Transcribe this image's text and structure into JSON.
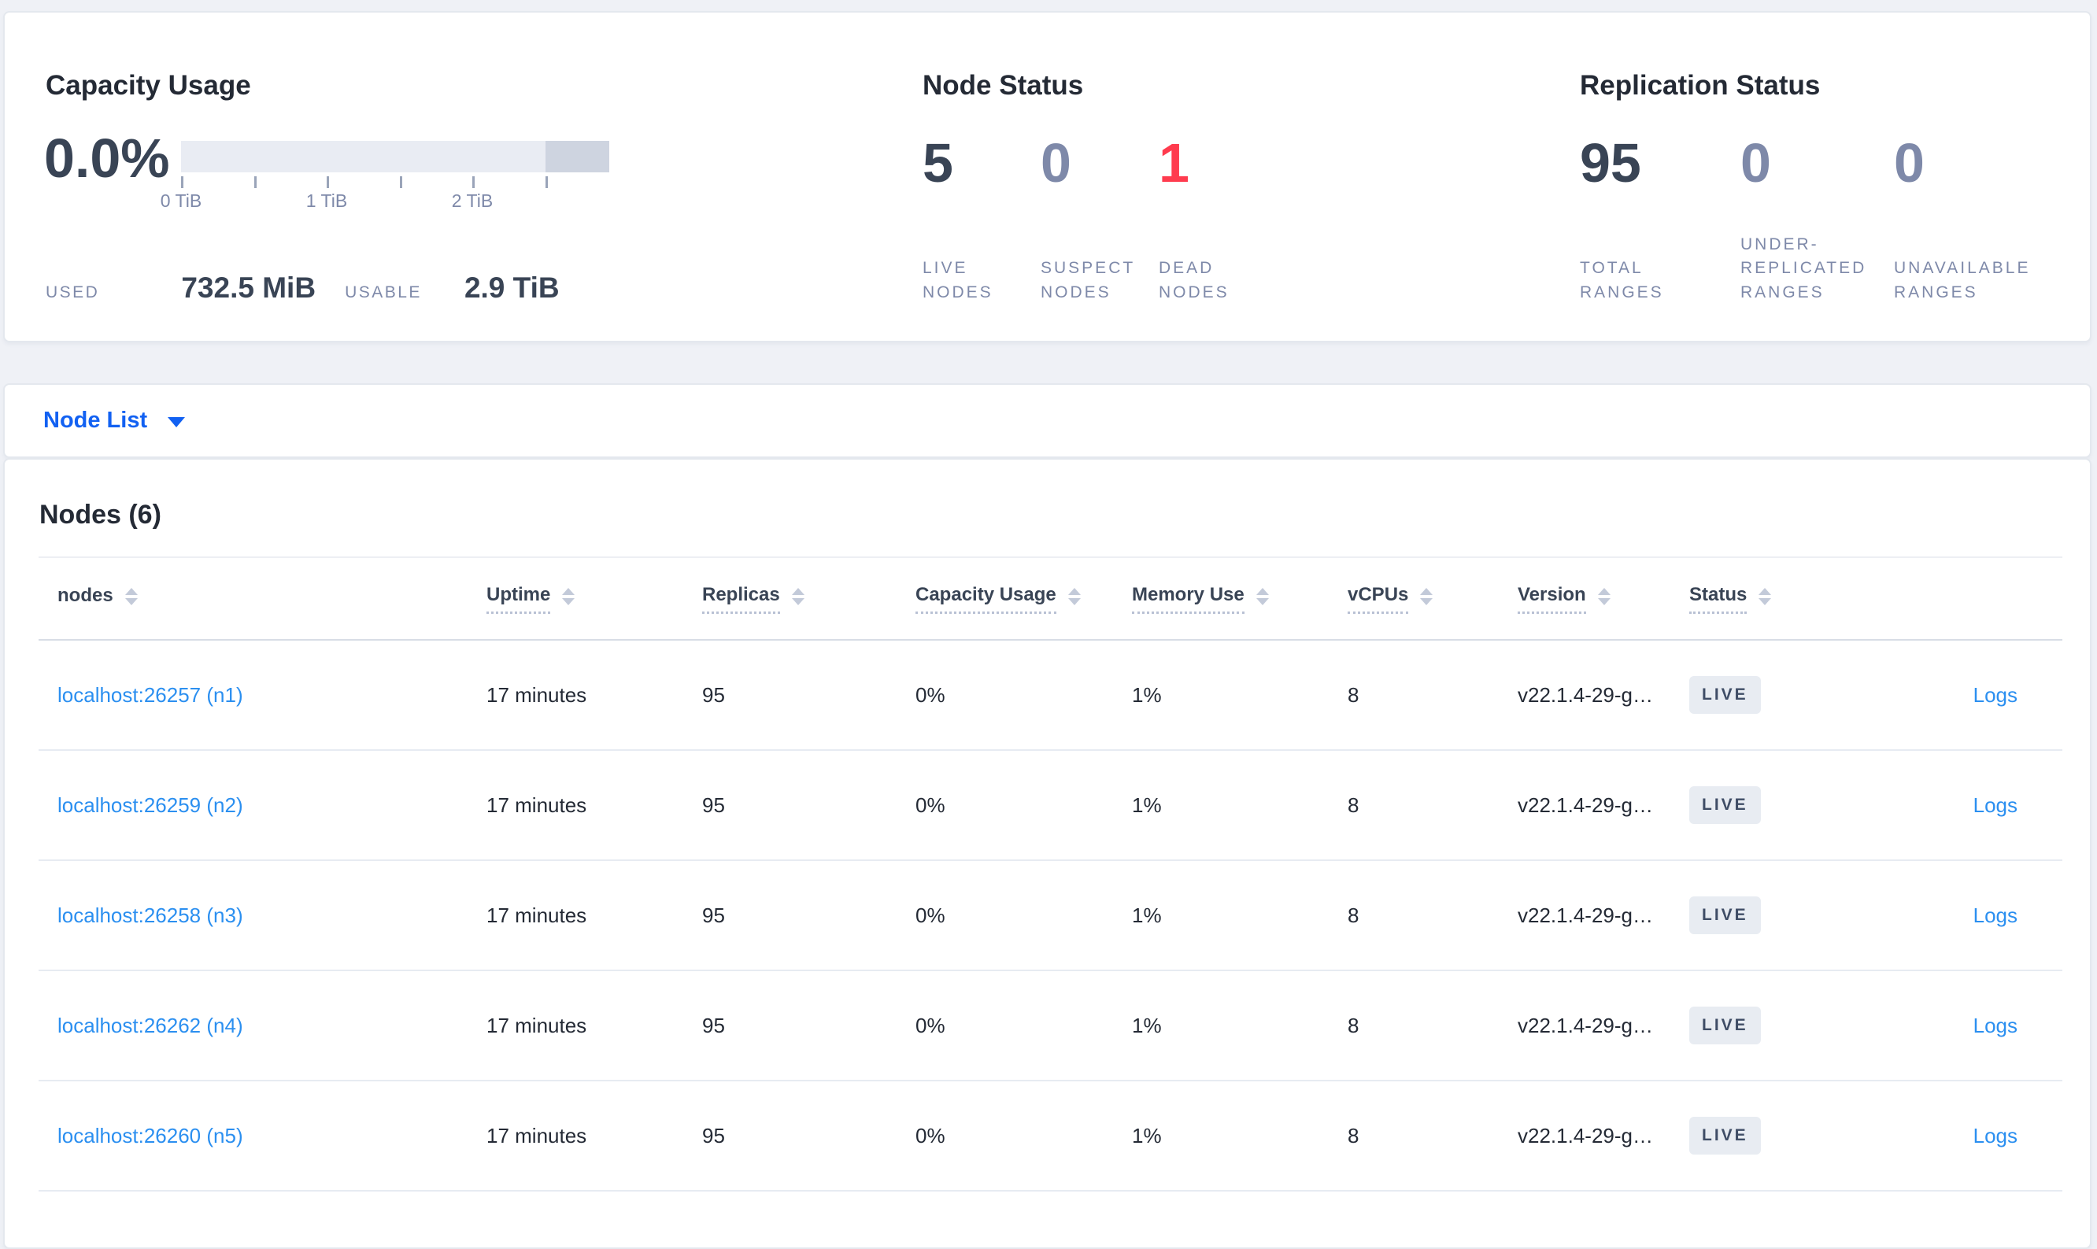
{
  "summary": {
    "capacity": {
      "title": "Capacity Usage",
      "percent": "0.0%",
      "used_label": "USED",
      "used_value": "732.5 MiB",
      "usable_label": "USABLE",
      "usable_value": "2.9 TiB",
      "ticks": [
        "0 TiB",
        "1 TiB",
        "2 TiB"
      ]
    },
    "node_status": {
      "title": "Node Status",
      "stats": [
        {
          "value": "5",
          "label": "LIVE NODES",
          "tone": "dark"
        },
        {
          "value": "0",
          "label": "SUSPECT NODES",
          "tone": "muted"
        },
        {
          "value": "1",
          "label": "DEAD NODES",
          "tone": "red"
        }
      ]
    },
    "replication": {
      "title": "Replication Status",
      "stats": [
        {
          "value": "95",
          "label": "TOTAL RANGES",
          "tone": "dark"
        },
        {
          "value": "0",
          "label": "UNDER-REPLICATED RANGES",
          "tone": "muted"
        },
        {
          "value": "0",
          "label": "UNAVAILABLE RANGES",
          "tone": "muted"
        }
      ]
    }
  },
  "node_list_bar": {
    "label": "Node List"
  },
  "nodes_section": {
    "heading": "Nodes (6)",
    "columns": [
      {
        "label": "nodes",
        "tooltip": false
      },
      {
        "label": "Uptime",
        "tooltip": true
      },
      {
        "label": "Replicas",
        "tooltip": true
      },
      {
        "label": "Capacity Usage",
        "tooltip": true
      },
      {
        "label": "Memory Use",
        "tooltip": true
      },
      {
        "label": "vCPUs",
        "tooltip": true
      },
      {
        "label": "Version",
        "tooltip": true
      },
      {
        "label": "Status",
        "tooltip": true
      },
      {
        "label": "",
        "tooltip": false
      }
    ],
    "rows": [
      {
        "node": "localhost:26257 (n1)",
        "uptime": "17 minutes",
        "replicas": "95",
        "capacity": "0%",
        "memory": "1%",
        "vcpus": "8",
        "version": "v22.1.4-29-g…",
        "status": "LIVE",
        "logs": "Logs"
      },
      {
        "node": "localhost:26259 (n2)",
        "uptime": "17 minutes",
        "replicas": "95",
        "capacity": "0%",
        "memory": "1%",
        "vcpus": "8",
        "version": "v22.1.4-29-g…",
        "status": "LIVE",
        "logs": "Logs"
      },
      {
        "node": "localhost:26258 (n3)",
        "uptime": "17 minutes",
        "replicas": "95",
        "capacity": "0%",
        "memory": "1%",
        "vcpus": "8",
        "version": "v22.1.4-29-g…",
        "status": "LIVE",
        "logs": "Logs"
      },
      {
        "node": "localhost:26262 (n4)",
        "uptime": "17 minutes",
        "replicas": "95",
        "capacity": "0%",
        "memory": "1%",
        "vcpus": "8",
        "version": "v22.1.4-29-g…",
        "status": "LIVE",
        "logs": "Logs"
      },
      {
        "node": "localhost:26260 (n5)",
        "uptime": "17 minutes",
        "replicas": "95",
        "capacity": "0%",
        "memory": "1%",
        "vcpus": "8",
        "version": "v22.1.4-29-g…",
        "status": "LIVE",
        "logs": "Logs"
      }
    ]
  },
  "chart_data": {
    "type": "bar",
    "title": "Capacity Usage",
    "percent_used": 0.0,
    "used": "732.5 MiB",
    "usable": "2.9 TiB",
    "axis_unit": "TiB",
    "axis_ticks": [
      0,
      0.5,
      1,
      1.5,
      2,
      2.5
    ],
    "labeled_ticks": [
      "0 TiB",
      "1 TiB",
      "2 TiB"
    ],
    "bar_segments": [
      {
        "name": "usable-capacity",
        "fraction": 0.85,
        "color": "#e9ecf3"
      },
      {
        "name": "reserved-capacity",
        "fraction": 0.15,
        "color": "#ced4e0"
      }
    ]
  },
  "colors": {
    "page_bg": "#eff1f6",
    "panel_bg": "#ffffff",
    "panel_border": "#e4e8ee",
    "title_text": "#242a35",
    "value_text": "#394455",
    "muted_text": "#7e89a9",
    "danger_red": "#ff3b4e",
    "table_link_blue": "#2b8ff0",
    "dropdown_blue": "#1261f2",
    "bar_light": "#e9ecf3",
    "bar_dark": "#ced4e0",
    "badge_bg": "#e8ecf2",
    "badge_text": "#3f4d66",
    "row_border": "#e7ebf2"
  }
}
